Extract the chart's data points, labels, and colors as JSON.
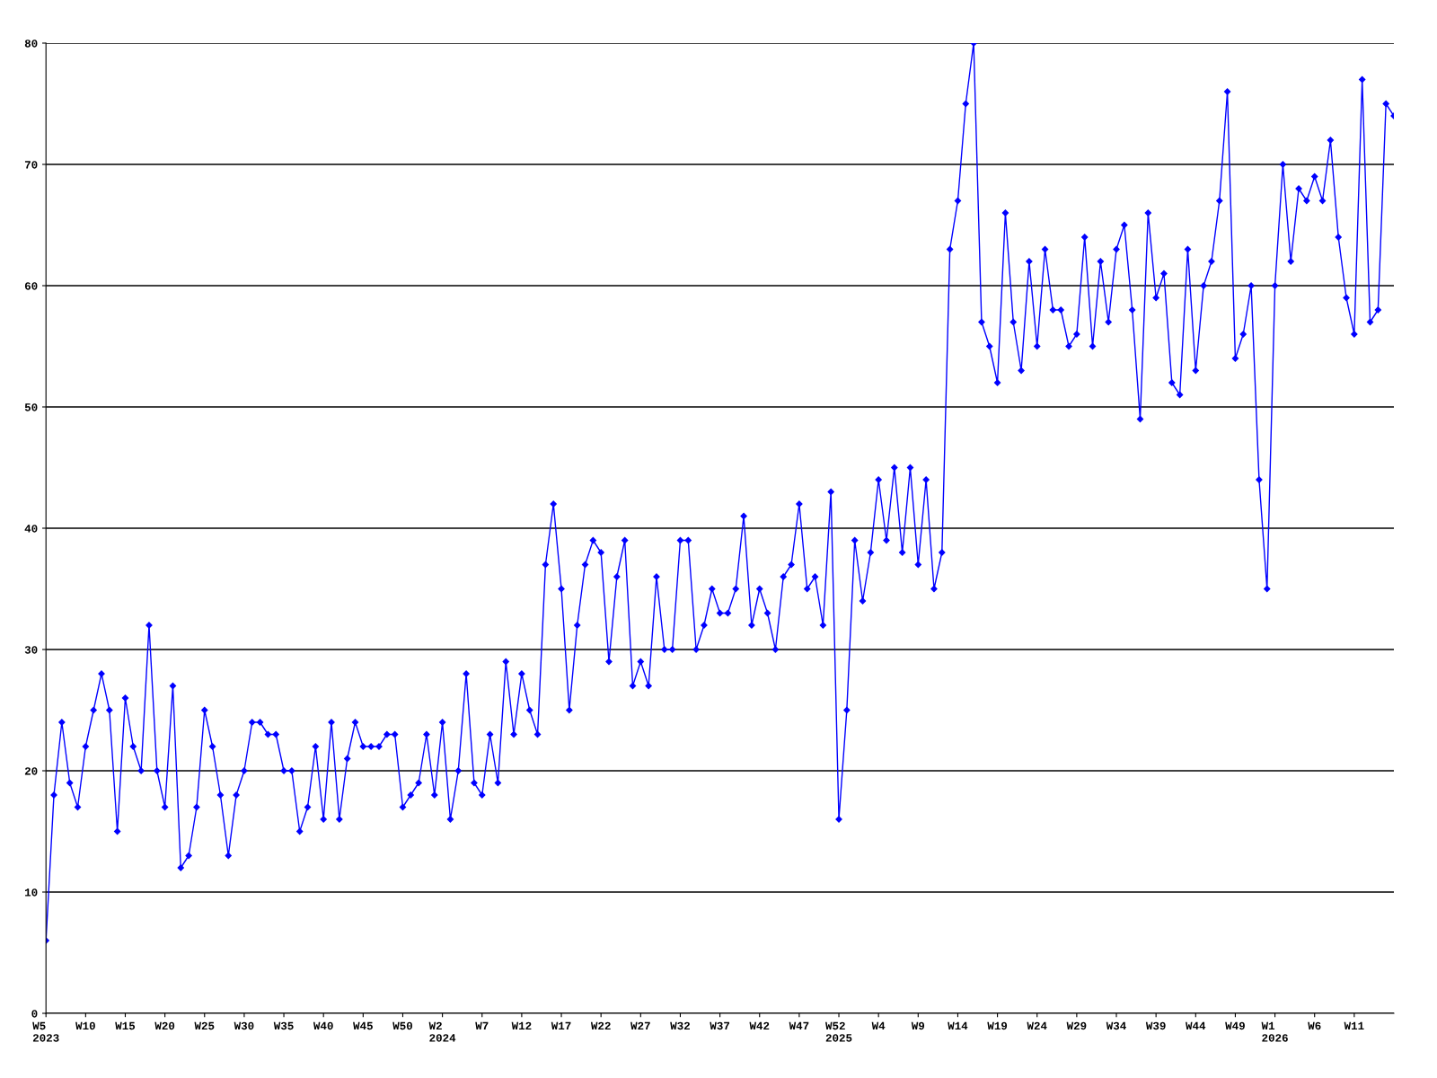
{
  "chart_data": {
    "type": "line",
    "categories": [
      "W5\n2023",
      null,
      null,
      null,
      null,
      "W10",
      null,
      null,
      null,
      null,
      "W15",
      null,
      null,
      null,
      null,
      "W20",
      null,
      null,
      null,
      null,
      "W25",
      null,
      null,
      null,
      null,
      "W30",
      null,
      null,
      null,
      null,
      "W35",
      null,
      null,
      null,
      null,
      "W40",
      null,
      null,
      null,
      null,
      "W45",
      null,
      null,
      null,
      null,
      "W50",
      null,
      null,
      null,
      null,
      "W2\n2024",
      null,
      null,
      null,
      null,
      "W7",
      null,
      null,
      null,
      null,
      "W12",
      null,
      null,
      null,
      null,
      "W17",
      null,
      null,
      null,
      null,
      "W22",
      null,
      null,
      null,
      null,
      "W27",
      null,
      null,
      null,
      null,
      "W32",
      null,
      null,
      null,
      null,
      "W37",
      null,
      null,
      null,
      null,
      "W42",
      null,
      null,
      null,
      null,
      "W47",
      null,
      null,
      null,
      null,
      "W52\n2025",
      null,
      null,
      null,
      null,
      "W4",
      null,
      null,
      null,
      null,
      "W9",
      null,
      null,
      null,
      null,
      "W14",
      null,
      null,
      null,
      null,
      "W19",
      null,
      null,
      null,
      null,
      "W24",
      null,
      null,
      null,
      null,
      "W29",
      null,
      null,
      null,
      null,
      "W34",
      null,
      null,
      null,
      null,
      "W39",
      null,
      null,
      null,
      null,
      "W44",
      null,
      null,
      null,
      null,
      "W49",
      null,
      null,
      null,
      null,
      "W1\n2026",
      null,
      null,
      null,
      null,
      "W6",
      null,
      null,
      null,
      null,
      "W11",
      null,
      null,
      null,
      null,
      null
    ],
    "series": [
      {
        "color": "#0000ff",
        "values": [
          6,
          18,
          24,
          19,
          17,
          22,
          25,
          28,
          25,
          15,
          26,
          22,
          20,
          32,
          20,
          17,
          27,
          12,
          13,
          17,
          25,
          22,
          18,
          13,
          18,
          20,
          24,
          24,
          23,
          23,
          20,
          20,
          15,
          17,
          22,
          16,
          24,
          16,
          21,
          24,
          22,
          22,
          22,
          23,
          23,
          17,
          18,
          19,
          23,
          18,
          24,
          16,
          20,
          28,
          19,
          18,
          23,
          19,
          29,
          23,
          28,
          25,
          23,
          37,
          42,
          35,
          25,
          32,
          37,
          39,
          38,
          29,
          36,
          39,
          27,
          29,
          27,
          36,
          30,
          30,
          39,
          39,
          30,
          32,
          35,
          33,
          33,
          35,
          41,
          32,
          35,
          33,
          30,
          36,
          37,
          42,
          35,
          36,
          32,
          43,
          16,
          25,
          39,
          34,
          38,
          44,
          39,
          45,
          38,
          45,
          37,
          44,
          35,
          38,
          63,
          67,
          75,
          80,
          57,
          55,
          52,
          66,
          57,
          53,
          62,
          55,
          63,
          58,
          58,
          55,
          56,
          64,
          55,
          62,
          57,
          63,
          65,
          58,
          49,
          66,
          59,
          61,
          52,
          51,
          63,
          53,
          60,
          62,
          67,
          76,
          54,
          56,
          60,
          44,
          35,
          60,
          70,
          62,
          68,
          67,
          69,
          67,
          72,
          64,
          59,
          56,
          77,
          57,
          58,
          75,
          74
        ]
      }
    ],
    "ylim": [
      0,
      80
    ],
    "yticks": [
      0,
      10,
      20,
      30,
      40,
      50,
      60,
      70,
      80
    ],
    "grid": "y",
    "marker": "diamond",
    "line_style": "solid"
  }
}
